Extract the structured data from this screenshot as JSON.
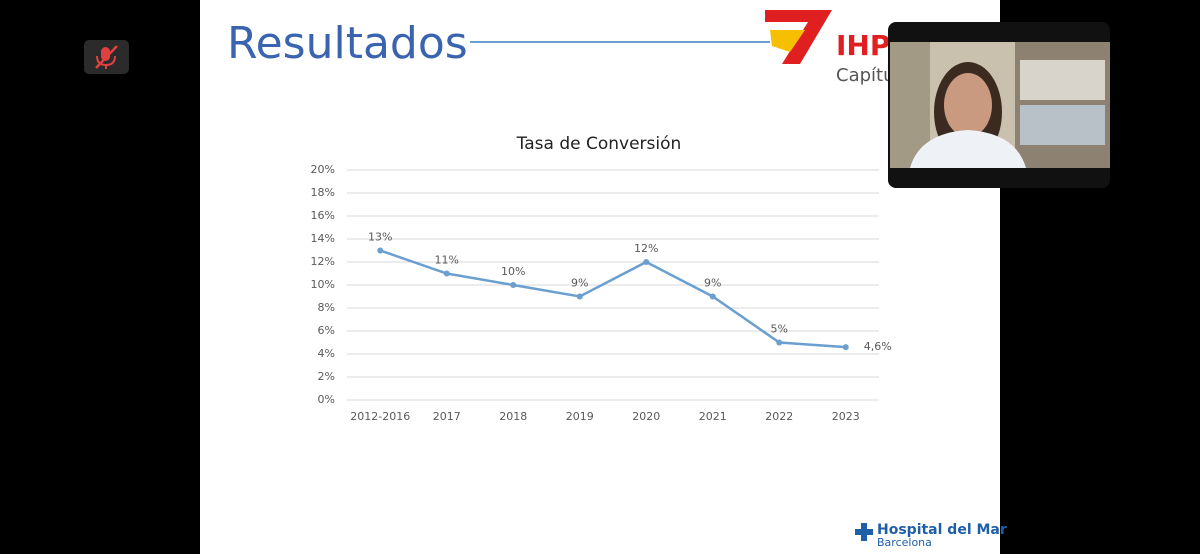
{
  "slide": {
    "title": "Resultados",
    "logo": {
      "brand": "IHP",
      "subtitle": "Capítu"
    },
    "footer": {
      "name": "Hospital del Mar",
      "city": "Barcelona"
    }
  },
  "chart_data": {
    "type": "line",
    "title": "Tasa de Conversión",
    "categories": [
      "2012-2016",
      "2017",
      "2018",
      "2019",
      "2020",
      "2021",
      "2022",
      "2023"
    ],
    "values": [
      13,
      11,
      10,
      9,
      12,
      9,
      5,
      4.6
    ],
    "value_labels": [
      "13%",
      "11%",
      "10%",
      "9%",
      "12%",
      "9%",
      "5%",
      "4,6%"
    ],
    "color": "#6a9fd0",
    "ylim": [
      0,
      20
    ],
    "yticks": [
      {
        "value": 0,
        "label": "0%"
      },
      {
        "value": 2,
        "label": "2%"
      },
      {
        "value": 4,
        "label": "4%"
      },
      {
        "value": 6,
        "label": "6%"
      },
      {
        "value": 8,
        "label": "8%"
      },
      {
        "value": 10,
        "label": "10%"
      },
      {
        "value": 12,
        "label": "12%"
      },
      {
        "value": 14,
        "label": "14%"
      },
      {
        "value": 16,
        "label": "16%"
      },
      {
        "value": 18,
        "label": "18%"
      },
      {
        "value": 20,
        "label": "20%"
      }
    ],
    "grid": true
  }
}
